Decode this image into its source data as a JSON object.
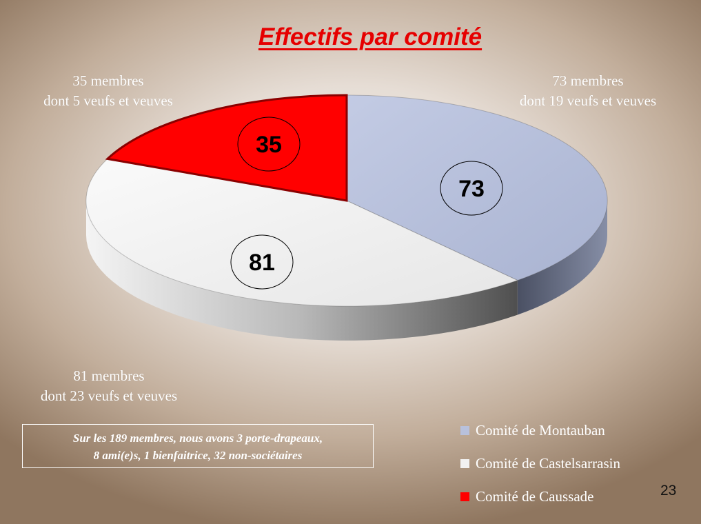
{
  "chart_data": {
    "type": "pie",
    "title": "Effectifs par comité",
    "categories": [
      "Comité de Montauban",
      "Comité de Castelsarrasin",
      "Comité de Caussade"
    ],
    "values": [
      73,
      81,
      35
    ],
    "colors": [
      "#b8c1dc",
      "#f2f2f2",
      "#ff0000"
    ],
    "data_labels": [
      "73",
      "81",
      "35"
    ],
    "legend_position": "bottom-right",
    "annotations": [
      {
        "line1": "73 membres",
        "line2": "dont 19 veufs et veuves"
      },
      {
        "line1": "81 membres",
        "line2": "dont 23 veufs et veuves"
      },
      {
        "line1": "35 membres",
        "line2": "dont 5 veufs et veuves"
      }
    ]
  },
  "note": {
    "line1": "Sur les 189 membres, nous avons 3 porte-drapeaux,",
    "line2": "8 ami(e)s, 1 bienfaitrice, 32 non-sociétaires"
  },
  "page_number": "23"
}
